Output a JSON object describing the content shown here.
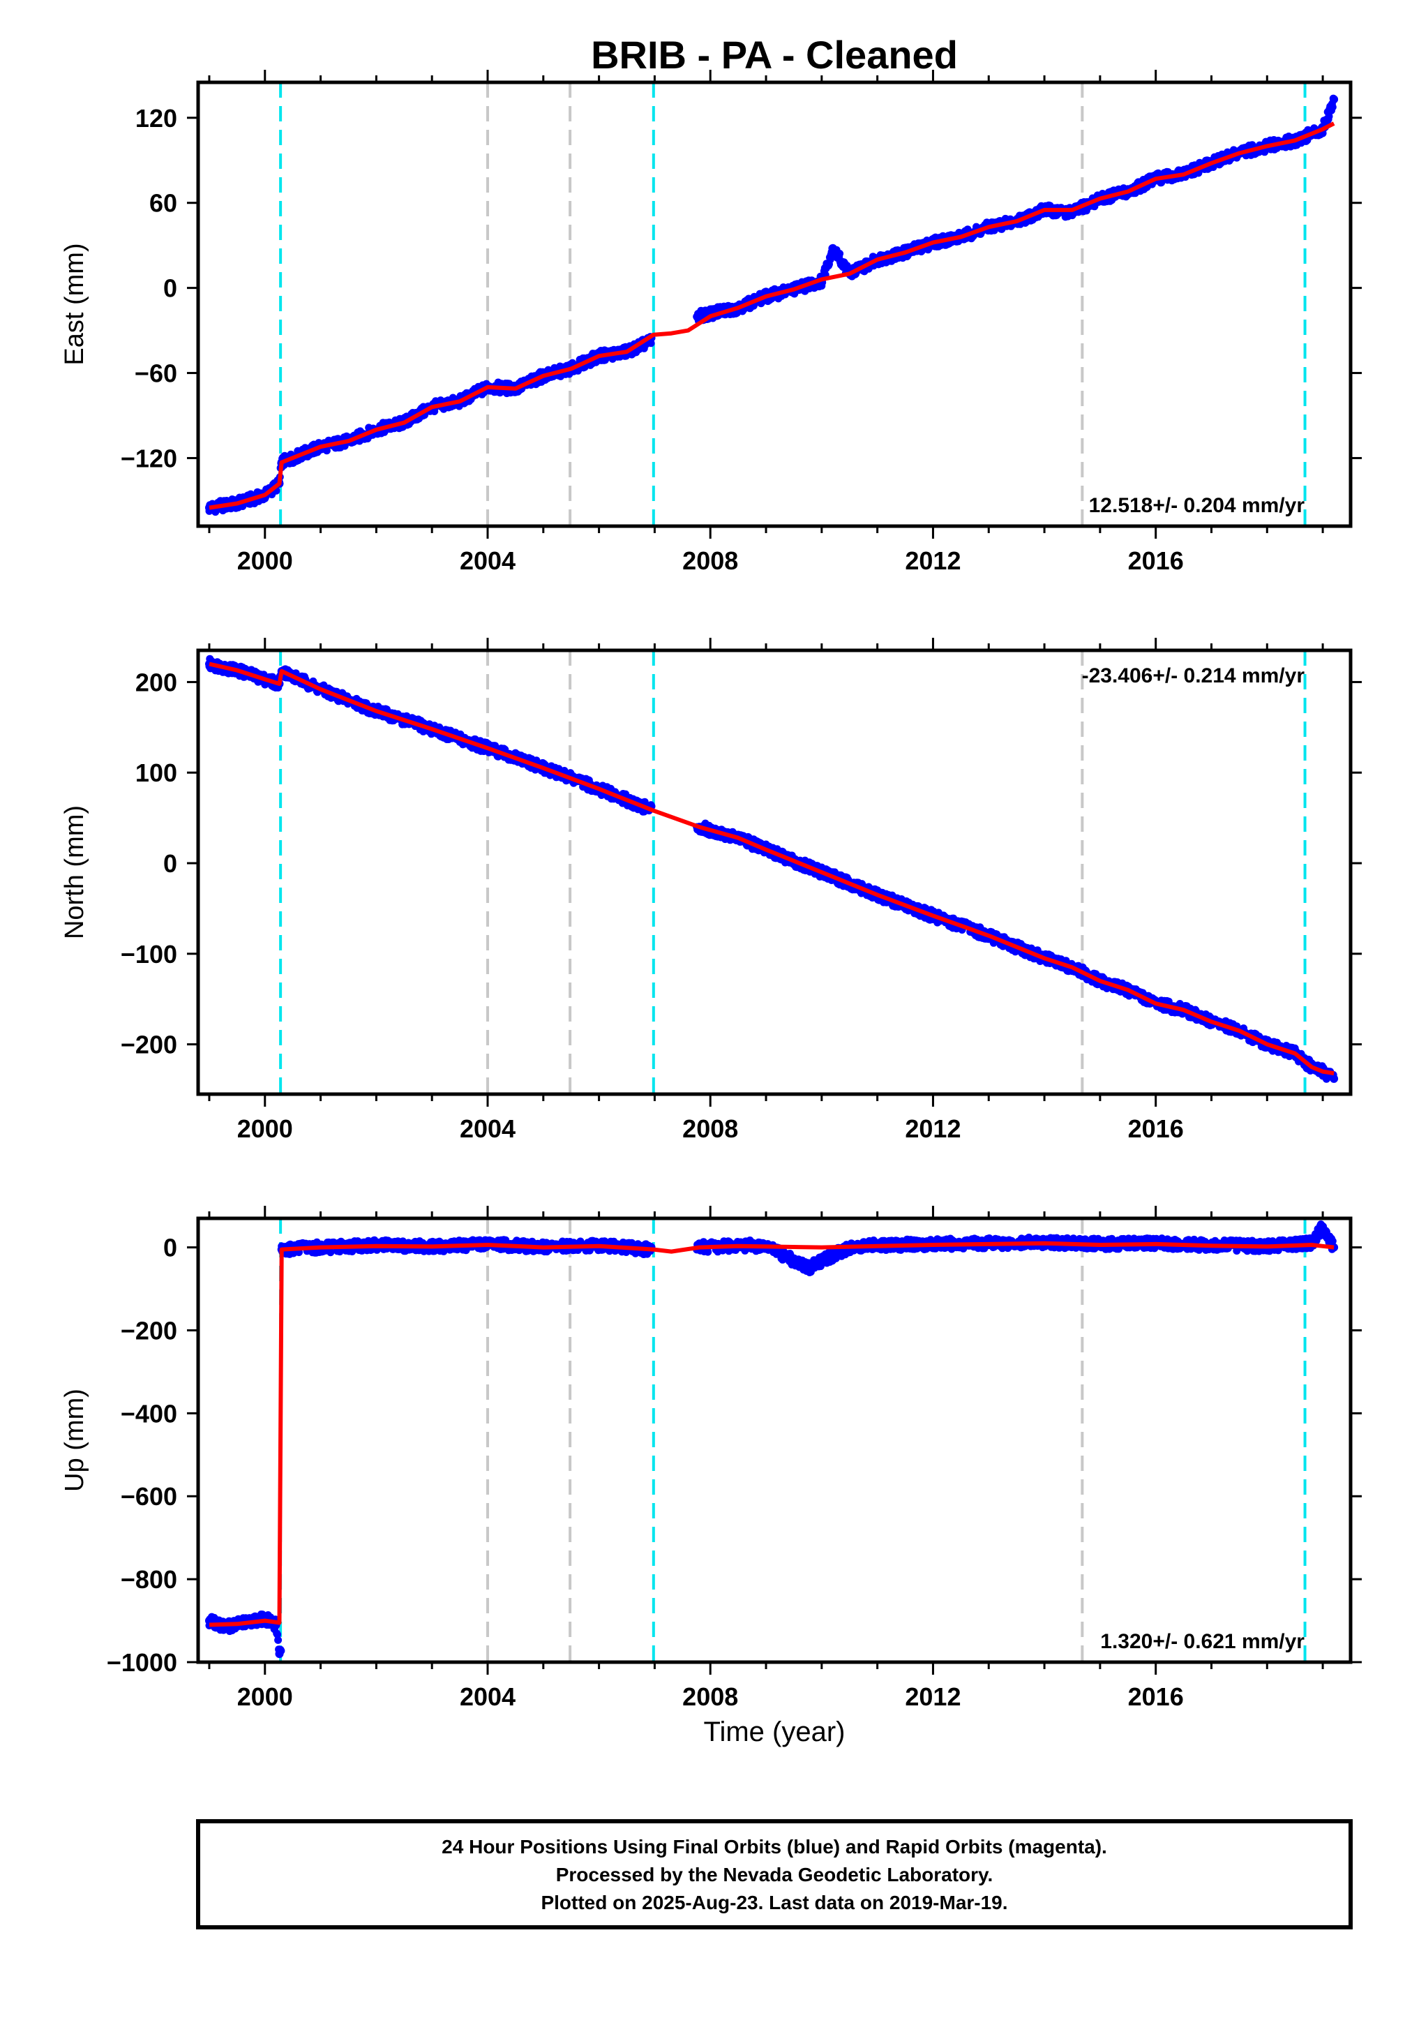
{
  "title": "BRIB  - PA - Cleaned",
  "xlabel": "Time (year)",
  "footer": [
    "24 Hour Positions Using Final Orbits (blue) and Rapid Orbits (magenta).",
    "Processed by the Nevada Geodetic Laboratory.",
    "Plotted on 2025-Aug-23. Last data on 2019-Mar-19."
  ],
  "colors": {
    "final_orbit_points": "#0000ff",
    "model_fit": "#ff0000",
    "equipment_change": "#00e5ee",
    "earthquake_offset": "#c8c8c8"
  },
  "chart_data": [
    {
      "type": "scatter",
      "component": "East",
      "ylabel": "East (mm)",
      "xlim": [
        1998.8,
        2019.5
      ],
      "ylim": [
        -168,
        145
      ],
      "x_ticks": [
        2000,
        2004,
        2008,
        2012,
        2016
      ],
      "y_ticks": [
        -120,
        -60,
        0,
        60,
        120
      ],
      "rate_label": "12.518+/- 0.204 mm/yr",
      "rate_position": "bottom-right",
      "cyan_lines": [
        2000.28,
        2006.98,
        2018.68
      ],
      "gray_lines": [
        2004.0,
        2005.48,
        2014.68
      ],
      "series": [
        {
          "kind": "points",
          "x": [
            1999.0,
            1999.5,
            2000.0,
            2000.26,
            2000.3,
            2001.0,
            2001.5,
            2002.0,
            2002.5,
            2003.0,
            2003.5,
            2004.0,
            2004.5,
            2005.0,
            2005.5,
            2006.0,
            2006.5,
            2006.9,
            2007.8,
            2008.5,
            2009.0,
            2009.5,
            2010.0,
            2010.2,
            2010.5,
            2011.0,
            2011.5,
            2012.0,
            2012.5,
            2013.0,
            2013.5,
            2014.0,
            2014.5,
            2015.0,
            2015.5,
            2016.0,
            2016.5,
            2017.0,
            2017.5,
            2018.0,
            2018.5,
            2019.0,
            2019.2
          ],
          "y": [
            -155,
            -152,
            -146,
            -138,
            -123,
            -112,
            -108,
            -100,
            -95,
            -84,
            -80,
            -70,
            -71,
            -62,
            -57,
            -48,
            -45,
            -38,
            -20,
            -14,
            -6,
            -1,
            5,
            28,
            10,
            20,
            25,
            32,
            36,
            43,
            47,
            55,
            53,
            63,
            68,
            77,
            80,
            88,
            95,
            100,
            104,
            112,
            133
          ]
        },
        {
          "kind": "line",
          "x": [
            1999.0,
            1999.5,
            2000.0,
            2000.26,
            2000.3,
            2001.0,
            2001.5,
            2002.0,
            2002.5,
            2003.0,
            2003.5,
            2004.0,
            2004.5,
            2005.0,
            2005.5,
            2006.0,
            2006.5,
            2006.98,
            2007.3,
            2007.6,
            2008.0,
            2008.5,
            2009.0,
            2009.5,
            2010.0,
            2010.5,
            2011.0,
            2011.5,
            2012.0,
            2012.5,
            2013.0,
            2013.5,
            2014.0,
            2014.5,
            2015.0,
            2015.5,
            2016.0,
            2016.5,
            2017.0,
            2017.5,
            2018.0,
            2018.5,
            2019.0,
            2019.2
          ],
          "y": [
            -155,
            -152,
            -146,
            -138,
            -123,
            -112,
            -108,
            -100,
            -95,
            -84,
            -80,
            -70,
            -71,
            -62,
            -57,
            -48,
            -45,
            -33,
            -32,
            -30,
            -20,
            -14,
            -6,
            -1,
            6,
            10,
            20,
            25,
            32,
            36,
            43,
            47,
            55,
            55,
            63,
            68,
            77,
            80,
            88,
            95,
            100,
            104,
            112,
            116
          ]
        }
      ]
    },
    {
      "type": "scatter",
      "component": "North",
      "ylabel": "North (mm)",
      "xlim": [
        1998.8,
        2019.5
      ],
      "ylim": [
        -255,
        235
      ],
      "x_ticks": [
        2000,
        2004,
        2008,
        2012,
        2016
      ],
      "y_ticks": [
        -200,
        -100,
        0,
        100,
        200
      ],
      "rate_label": "-23.406+/- 0.214 mm/yr",
      "rate_position": "top-right",
      "cyan_lines": [
        2000.28,
        2006.98,
        2018.68
      ],
      "gray_lines": [
        2004.0,
        2005.48,
        2014.68
      ],
      "series": [
        {
          "kind": "points",
          "x": [
            1999.0,
            1999.5,
            2000.0,
            2000.26,
            2000.3,
            2001.0,
            2002.0,
            2003.0,
            2004.0,
            2005.0,
            2006.0,
            2006.9,
            2007.8,
            2008.5,
            2009.0,
            2010.0,
            2011.0,
            2012.0,
            2013.0,
            2014.0,
            2014.5,
            2015.0,
            2015.5,
            2016.0,
            2016.5,
            2017.0,
            2017.5,
            2018.0,
            2018.5,
            2018.8,
            2019.0,
            2019.2
          ],
          "y": [
            220,
            213,
            203,
            198,
            212,
            192,
            168,
            148,
            127,
            105,
            82,
            60,
            40,
            28,
            15,
            -10,
            -35,
            -58,
            -80,
            -105,
            -115,
            -130,
            -140,
            -155,
            -162,
            -175,
            -185,
            -200,
            -210,
            -225,
            -230,
            -238
          ]
        },
        {
          "kind": "line",
          "x": [
            1999.0,
            1999.5,
            2000.0,
            2000.26,
            2000.3,
            2001.0,
            2002.0,
            2003.0,
            2004.0,
            2005.0,
            2006.0,
            2006.98,
            2007.8,
            2008.5,
            2009.0,
            2010.0,
            2011.0,
            2012.0,
            2013.0,
            2014.0,
            2014.5,
            2015.0,
            2015.5,
            2016.0,
            2016.5,
            2017.0,
            2017.5,
            2018.0,
            2018.5,
            2018.8,
            2019.0,
            2019.2
          ],
          "y": [
            220,
            213,
            203,
            198,
            212,
            192,
            168,
            148,
            127,
            105,
            82,
            58,
            40,
            28,
            15,
            -10,
            -35,
            -58,
            -80,
            -105,
            -115,
            -130,
            -140,
            -155,
            -162,
            -175,
            -185,
            -200,
            -210,
            -225,
            -230,
            -232
          ]
        }
      ]
    },
    {
      "type": "scatter",
      "component": "Up",
      "ylabel": "Up (mm)",
      "xlim": [
        1998.8,
        2019.5
      ],
      "ylim": [
        -1000,
        70
      ],
      "x_ticks": [
        2000,
        2004,
        2008,
        2012,
        2016
      ],
      "y_ticks": [
        -1000,
        -800,
        -600,
        -400,
        -200,
        0
      ],
      "rate_label": "1.320+/- 0.621 mm/yr",
      "rate_position": "bottom-right",
      "cyan_lines": [
        2000.28,
        2006.98,
        2018.68
      ],
      "gray_lines": [
        2004.0,
        2005.48,
        2014.68
      ],
      "series": [
        {
          "kind": "points",
          "x": [
            1999.0,
            1999.3,
            1999.6,
            2000.0,
            2000.2,
            2000.26,
            2000.3,
            2001.0,
            2002.0,
            2003.0,
            2004.0,
            2005.0,
            2006.0,
            2006.9,
            2007.8,
            2008.5,
            2009.0,
            2009.75,
            2010.5,
            2011.0,
            2012.0,
            2013.0,
            2014.0,
            2015.0,
            2016.0,
            2017.0,
            2018.0,
            2018.8,
            2019.0,
            2019.2
          ],
          "y": [
            -900,
            -915,
            -905,
            -895,
            -910,
            -980,
            -5,
            0,
            5,
            2,
            8,
            0,
            5,
            -5,
            0,
            5,
            3,
            -50,
            0,
            5,
            8,
            10,
            12,
            8,
            10,
            5,
            3,
            10,
            50,
            0
          ]
        },
        {
          "kind": "line",
          "x": [
            1999.0,
            1999.5,
            2000.0,
            2000.26,
            2000.3,
            2001.0,
            2002.0,
            2003.0,
            2004.0,
            2005.0,
            2006.0,
            2006.98,
            2007.3,
            2007.8,
            2008.5,
            2009.0,
            2010.0,
            2011.0,
            2012.0,
            2013.0,
            2014.0,
            2015.0,
            2016.0,
            2017.0,
            2018.0,
            2018.8,
            2019.0,
            2019.2
          ],
          "y": [
            -910,
            -908,
            -900,
            -905,
            -5,
            0,
            3,
            2,
            6,
            0,
            3,
            -5,
            -10,
            0,
            3,
            2,
            0,
            3,
            6,
            8,
            10,
            6,
            8,
            4,
            2,
            6,
            3,
            0
          ]
        }
      ]
    }
  ]
}
